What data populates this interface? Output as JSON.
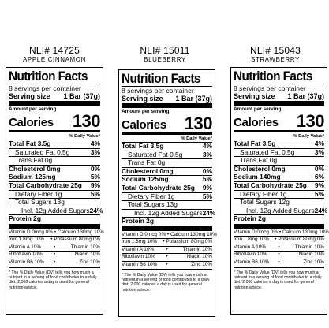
{
  "labels": [
    {
      "nli": "NLI# 14725",
      "flavor": "APPLE CINNAMON",
      "title": "Nutrition Facts",
      "servings": "8 servings per container",
      "serving_size_label": "Serving size",
      "serving_size_value": "1 Bar (37g)",
      "amount_per_serving": "Amount per serving",
      "calories_label": "Calories",
      "calories_value": "130",
      "dv_header": "% Daily Value*",
      "total_fat": "Total Fat 3.5g",
      "total_fat_dv": "4%",
      "sat_fat": "Saturated Fat 0.5g",
      "sat_fat_dv": "3%",
      "trans_fat": "Trans Fat 0g",
      "cholesterol": "Cholesterol 0mg",
      "cholesterol_dv": "0%",
      "sodium": "Sodium 125mg",
      "sodium_dv": "5%",
      "carb": "Total Carbohydrate 25g",
      "carb_dv": "9%",
      "fiber": "Dietary Fiber 1g",
      "fiber_dv": "5%",
      "sugars": "Total Sugars 13g",
      "added": "Incl. 12g Added Sugars",
      "added_dv": "24%",
      "protein": "Protein 2g",
      "vit1_a": "Vitamin D 0mcg 0%",
      "vit1_b": "Calcium 130mg 10%",
      "vit2_a": "Iron 1.8mg 10%",
      "vit2_b": "Potassium 80mg 0%",
      "vit3_a": "Vitamin A 10%",
      "vit3_b": "Thiamin 10%",
      "vit4_a": "Riboflavin 10%",
      "vit4_b": "Niacin 10%",
      "vit5_a": "Vitamin B6 10%",
      "vit5_b": "Zinc 10%",
      "footnote": "* The % Daily Value (DV) tells you how much a nutrient in a serving of food contributes to a daily diet. 2,000 calories a day is used for general nutrition advice."
    },
    {
      "nli": "NLI# 15011",
      "flavor": "BLUEBERRY",
      "title": "Nutrition Facts",
      "servings": "8 servings per container",
      "serving_size_label": "Serving size",
      "serving_size_value": "1 Bar (37g)",
      "amount_per_serving": "Amount per serving",
      "calories_label": "Calories",
      "calories_value": "130",
      "dv_header": "% Daily Value*",
      "total_fat": "Total Fat 3.5g",
      "total_fat_dv": "4%",
      "sat_fat": "Saturated Fat 0.5g",
      "sat_fat_dv": "3%",
      "trans_fat": "Trans Fat 0g",
      "cholesterol": "Cholesterol 0mg",
      "cholesterol_dv": "0%",
      "sodium": "Sodium 125mg",
      "sodium_dv": "5%",
      "carb": "Total Carbohydrate 25g",
      "carb_dv": "9%",
      "fiber": "Dietary Fiber 1g",
      "fiber_dv": "5%",
      "sugars": "Total Sugars 13g",
      "added": "Incl. 12g Added Sugars",
      "added_dv": "24%",
      "protein": "Protein 2g",
      "vit1_a": "Vitamin D 0mcg 0%",
      "vit1_b": "Calcium 130mg 10%",
      "vit2_a": "Iron 1.8mg 10%",
      "vit2_b": "Potassium 80mg 0%",
      "vit3_a": "Vitamin A 10%",
      "vit3_b": "Thiamin 10%",
      "vit4_a": "Riboflavin 10%",
      "vit4_b": "Niacin 10%",
      "vit5_a": "Vitamin B6 10%",
      "vit5_b": "Zinc 10%",
      "footnote": "* The % Daily Value (DV) tells you how much a nutrient in a serving of food contributes to a daily diet. 2,000 calories a day is used for general nutrition advice."
    },
    {
      "nli": "NLI# 15043",
      "flavor": "STRAWBERRY",
      "title": "Nutrition Facts",
      "servings": "8 servings per container",
      "serving_size_label": "Serving size",
      "serving_size_value": "1 Bar (37g)",
      "amount_per_serving": "Amount per serving",
      "calories_label": "Calories",
      "calories_value": "130",
      "dv_header": "% Daily Value*",
      "total_fat": "Total Fat 3.5g",
      "total_fat_dv": "4%",
      "sat_fat": "Saturated Fat 0.5g",
      "sat_fat_dv": "3%",
      "trans_fat": "Trans Fat 0g",
      "cholesterol": "Cholesterol 0mg",
      "cholesterol_dv": "0%",
      "sodium": "Sodium 140mg",
      "sodium_dv": "6%",
      "carb": "Total Carbohydrate 25g",
      "carb_dv": "9%",
      "fiber": "Dietary Fiber 1g",
      "fiber_dv": "5%",
      "sugars": "Total Sugars 12g",
      "added": "Incl. 12g Added Sugars",
      "added_dv": "24%",
      "protein": "Protein 2g",
      "vit1_a": "Vitamin D 0mcg 0%",
      "vit1_b": "Calcium 130mg 10%",
      "vit2_a": "Iron 1.8mg 10%",
      "vit2_b": "Potassium 80mg 0%",
      "vit3_a": "Vitamin A 10%",
      "vit3_b": "Thiamin 10%",
      "vit4_a": "Riboflavin 10%",
      "vit4_b": "Niacin 10%",
      "vit5_a": "Vitamin B6 10%",
      "vit5_b": "Zinc 10%",
      "footnote": "* The % Daily Value (DV) tells you how much a nutrient in a serving of food contributes to a daily diet. 2,000 calories a day is used for general nutrition advice."
    }
  ]
}
